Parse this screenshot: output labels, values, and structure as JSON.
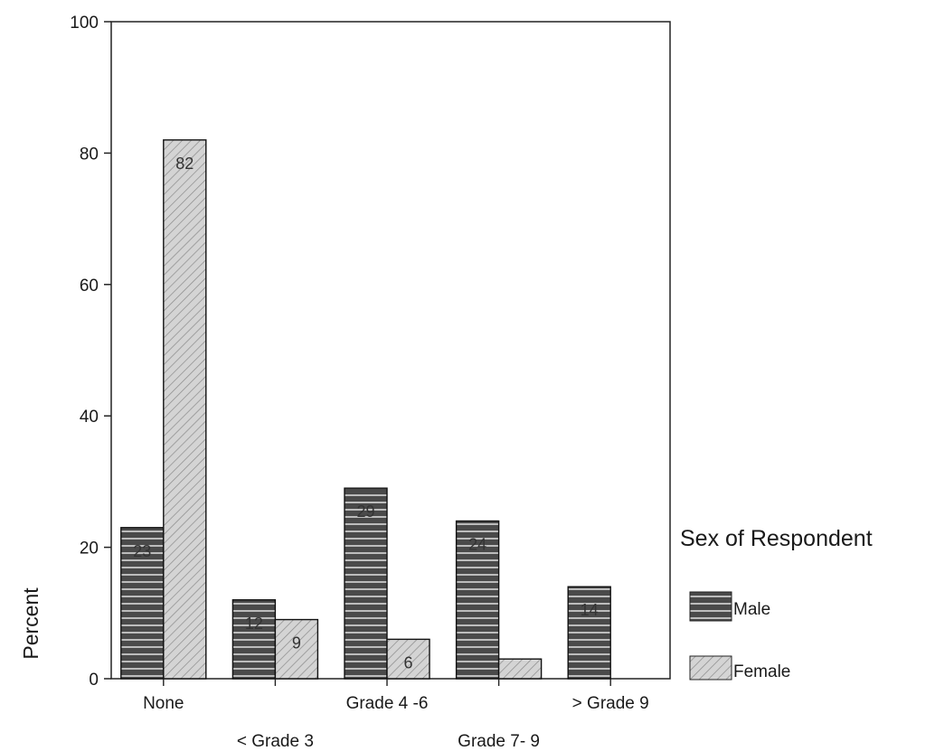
{
  "chart_data": {
    "type": "bar",
    "categories": [
      "None",
      "< Grade 3",
      "Grade 4 -6",
      "Grade 7- 9",
      "> Grade 9"
    ],
    "series": [
      {
        "name": "Male",
        "values": [
          23,
          12,
          29,
          24,
          14
        ],
        "labels": [
          "23",
          "12",
          "29",
          "24",
          "14"
        ],
        "color": "#555555"
      },
      {
        "name": "Female",
        "values": [
          82,
          9,
          6,
          3,
          0
        ],
        "labels": [
          "82",
          "9",
          "6",
          "",
          ""
        ],
        "color": "#cfcfcf"
      }
    ],
    "ylabel": "Percent",
    "xlabel": "",
    "title": "",
    "ylim": [
      0,
      100
    ],
    "yticks": [
      0,
      20,
      40,
      60,
      80,
      100
    ],
    "legend_title": "Sex of Respondent",
    "legend_position": "right",
    "grid": false
  }
}
